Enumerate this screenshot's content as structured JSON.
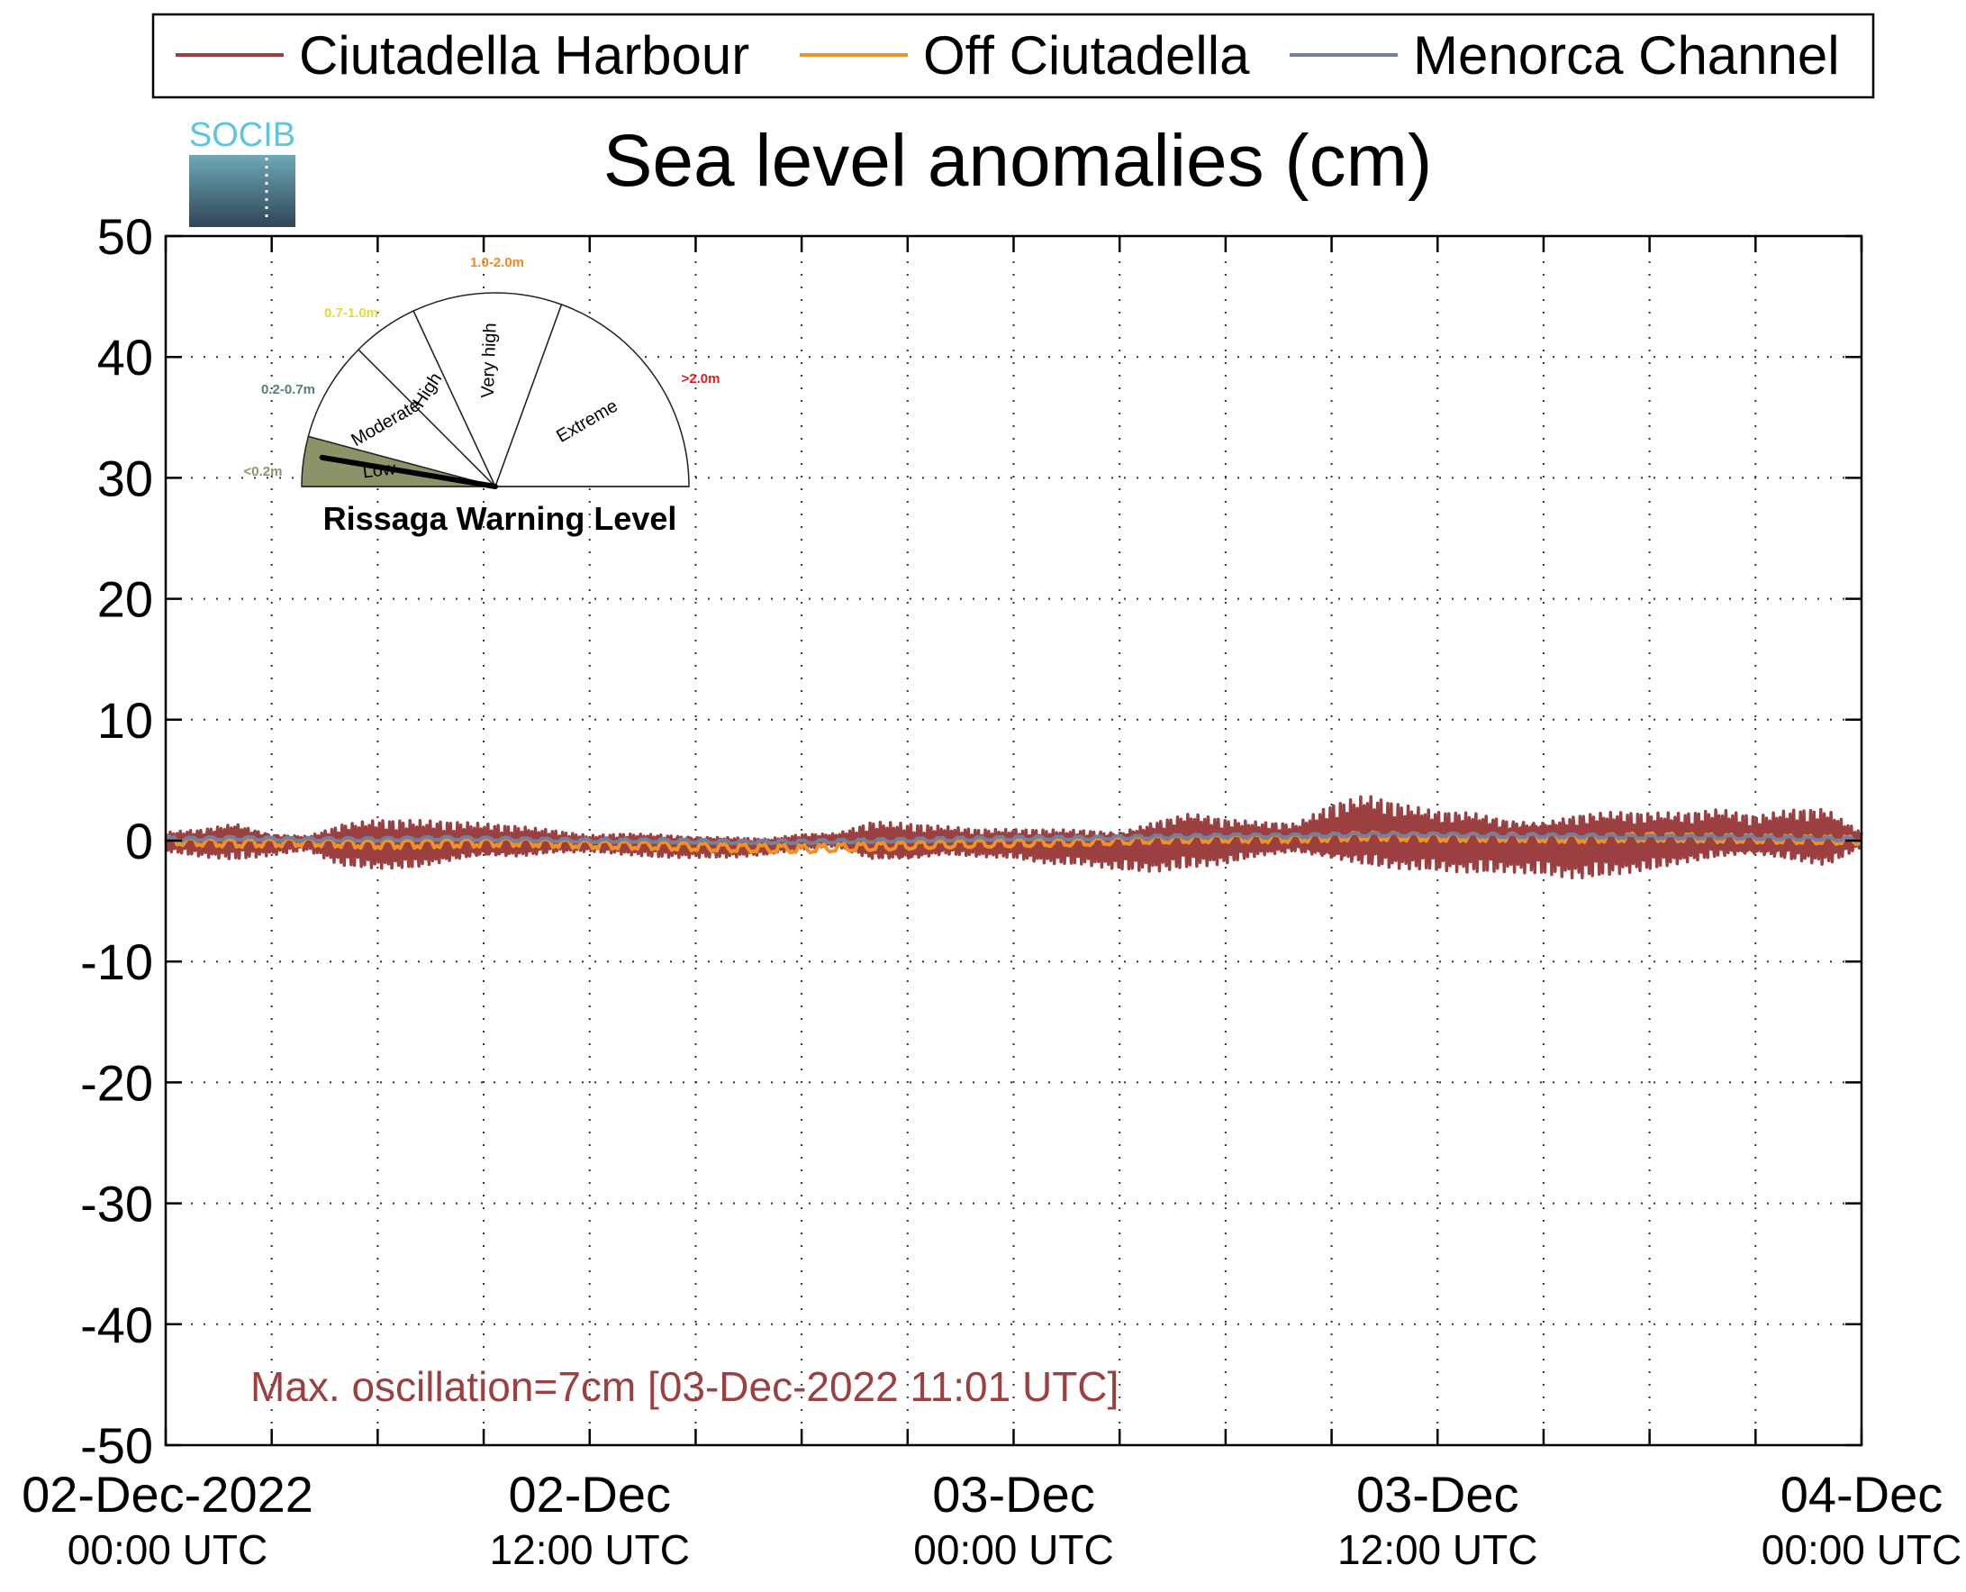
{
  "logo_text": "SOCIB",
  "chart_data": {
    "type": "line",
    "title": "Sea level anomalies (cm)",
    "xlabel": "",
    "ylabel": "",
    "ylim": [
      -50,
      50
    ],
    "yticks": [
      50,
      40,
      30,
      20,
      10,
      0,
      -10,
      -20,
      -30,
      -40,
      -50
    ],
    "xlim": [
      "2022-12-02T00:00Z",
      "2022-12-04T00:00Z"
    ],
    "x_unit": "hours since 02-Dec-2022 00:00 UTC",
    "xticks": [
      {
        "hour": 0,
        "date": "02-Dec-2022",
        "time": "00:00 UTC"
      },
      {
        "hour": 12,
        "date": "02-Dec",
        "time": "12:00 UTC"
      },
      {
        "hour": 24,
        "date": "03-Dec",
        "time": "00:00 UTC"
      },
      {
        "hour": 36,
        "date": "03-Dec",
        "time": "12:00 UTC"
      },
      {
        "hour": 48,
        "date": "04-Dec",
        "time": "00:00 UTC"
      }
    ],
    "minor_tick_step_hours": 3,
    "grid": true,
    "legend_position": "top",
    "series": [
      {
        "name": "Ciutadella Harbour",
        "color": "#9c3f40",
        "x": [
          0,
          1,
          2,
          3,
          4,
          5,
          6,
          7,
          8,
          9,
          10,
          11,
          12,
          13,
          14,
          15,
          16,
          17,
          18,
          19,
          20,
          21,
          22,
          23,
          24,
          25,
          26,
          27,
          28,
          29,
          30,
          31,
          32,
          33,
          34,
          35,
          36,
          37,
          38,
          39,
          40,
          41,
          42,
          43,
          44,
          45,
          46,
          47,
          48
        ],
        "max": [
          0.8,
          1.2,
          2.0,
          1.0,
          0.6,
          1.8,
          2.0,
          1.8,
          1.6,
          1.4,
          1.2,
          0.9,
          0.5,
          0.8,
          0.9,
          0.8,
          0.6,
          0.3,
          0.6,
          0.6,
          1.6,
          1.4,
          1.2,
          1.0,
          1.1,
          1.3,
          1.5,
          1.6,
          2.4,
          2.8,
          2.0,
          1.6,
          1.4,
          3.0,
          3.8,
          3.2,
          2.8,
          3.0,
          2.6,
          2.8,
          3.2,
          3.0,
          2.6,
          2.4,
          2.6,
          2.0,
          2.6,
          2.8,
          0.8
        ],
        "min": [
          -1.0,
          -1.4,
          -1.6,
          -1.2,
          -0.8,
          -2.2,
          -2.6,
          -2.8,
          -2.4,
          -2.0,
          -1.8,
          -1.2,
          -1.0,
          -1.2,
          -1.4,
          -1.4,
          -1.4,
          -1.2,
          -0.8,
          -0.6,
          -2.2,
          -2.4,
          -1.6,
          -1.6,
          -1.6,
          -2.0,
          -2.0,
          -2.4,
          -2.6,
          -2.4,
          -2.2,
          -1.6,
          -1.4,
          -2.8,
          -3.2,
          -3.0,
          -2.8,
          -2.8,
          -2.6,
          -2.8,
          -3.2,
          -3.0,
          -2.8,
          -2.4,
          -2.2,
          -2.0,
          -2.4,
          -2.6,
          -0.6
        ]
      },
      {
        "name": "Off Ciutadella",
        "color": "#f0922a",
        "x": [
          0,
          2,
          4,
          6,
          8,
          10,
          12,
          14,
          16,
          18,
          20,
          22,
          24,
          26,
          28,
          30,
          32,
          34,
          36,
          38,
          40,
          42,
          44,
          46,
          48
        ],
        "values": [
          0.0,
          -0.2,
          -0.1,
          -0.3,
          -0.2,
          -0.1,
          -0.3,
          -0.4,
          -0.6,
          -0.7,
          -0.5,
          -0.3,
          -0.2,
          -0.1,
          0.1,
          0.2,
          0.2,
          0.4,
          0.3,
          0.3,
          0.2,
          0.3,
          0.2,
          0.1,
          0.0
        ]
      },
      {
        "name": "Menorca Channel",
        "color": "#74809c",
        "x": [
          0,
          2,
          4,
          6,
          8,
          10,
          12,
          14,
          16,
          18,
          20,
          22,
          24,
          26,
          28,
          30,
          32,
          34,
          36,
          38,
          40,
          42,
          44,
          46,
          48
        ],
        "values": [
          0.1,
          0.2,
          0.1,
          0.1,
          0.2,
          0.1,
          0.0,
          0.0,
          -0.1,
          -0.1,
          0.0,
          0.1,
          0.2,
          0.2,
          0.3,
          0.4,
          0.4,
          0.5,
          0.5,
          0.4,
          0.4,
          0.3,
          0.3,
          0.2,
          0.1
        ]
      }
    ],
    "annotation": "Max. oscillation=7cm [03-Dec-2022 11:01 UTC]",
    "annotation_color": "#9c3f40",
    "gauge": {
      "title": "Rissaga Warning Level",
      "needle_level": "Low",
      "needle_color": "#000000",
      "sectors": [
        {
          "name": "Low",
          "range": "<0.2m",
          "range_color": "#8a9468",
          "fill": "#8a9468"
        },
        {
          "name": "Moderate",
          "range": "0.2-0.7m",
          "range_color": "#5c7a80",
          "fill": "#ffffff"
        },
        {
          "name": "High",
          "range": "0.7-1.0m",
          "range_color": "#e6d93a",
          "fill": "#ffffff"
        },
        {
          "name": "Very high",
          "range": "1.0-2.0m",
          "range_color": "#f08a1c",
          "fill": "#ffffff"
        },
        {
          "name": "Extreme",
          "range": ">2.0m",
          "range_color": "#e01c1c",
          "fill": "#ffffff"
        }
      ]
    }
  }
}
